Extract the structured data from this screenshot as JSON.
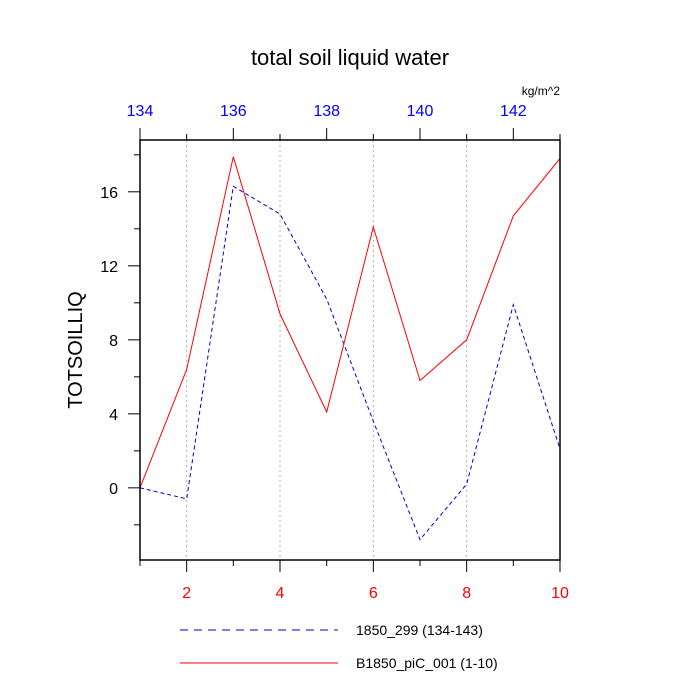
{
  "chart_data": {
    "type": "line",
    "title": "total soil liquid water",
    "units": "kg/m^2",
    "ylabel": "TOTSOILLIQ",
    "xlabel": "",
    "xlim": [
      1,
      10
    ],
    "ylim": [
      -3.9,
      18.8
    ],
    "top_xlim": [
      134,
      143
    ],
    "x_ticks": [
      2,
      4,
      6,
      8,
      10
    ],
    "x_tick_labels": [
      "2",
      "4",
      "6",
      "8",
      "10"
    ],
    "top_x_ticks": [
      134,
      136,
      138,
      140,
      142
    ],
    "top_x_tick_labels": [
      "134",
      "136",
      "138",
      "140",
      "142"
    ],
    "y_ticks": [
      0,
      4,
      8,
      12,
      16
    ],
    "y_tick_labels": [
      "0",
      "4",
      "8",
      "12",
      "16"
    ],
    "grid": "vertical dotted at major x ticks",
    "legend_position": "bottom",
    "colors": {
      "bottom_axis_labels": "#ff0000",
      "top_axis_labels": "#0000ff",
      "axis": "#000000",
      "grid": "#b0b0b0"
    },
    "series": [
      {
        "name": "1850_299 (134-143)",
        "color": "#0000cc",
        "dash": "dashed",
        "axis": "top",
        "x": [
          134,
          135,
          136,
          137,
          138,
          139,
          140,
          141,
          142,
          143
        ],
        "values": [
          0.0,
          -0.6,
          16.3,
          14.8,
          10.2,
          3.6,
          -2.8,
          0.2,
          9.9,
          2.1
        ]
      },
      {
        "name": "B1850_piC_001 (1-10)",
        "color": "#ff0000",
        "dash": "solid",
        "axis": "bottom",
        "x": [
          1,
          2,
          3,
          4,
          5,
          6,
          7,
          8,
          9,
          10
        ],
        "values": [
          0.0,
          6.4,
          17.9,
          9.4,
          4.1,
          14.1,
          5.8,
          8.0,
          14.7,
          17.8
        ]
      }
    ]
  }
}
